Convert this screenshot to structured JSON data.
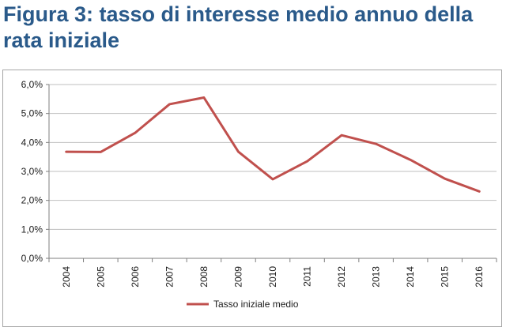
{
  "title": "Figura 3: tasso di interesse medio annuo della rata iniziale",
  "colors": {
    "title": "#2a5a8a",
    "series": "#c0504d",
    "grid": "#bfbfbf",
    "axis": "#7f7f7f",
    "frame": "#a6a6a6"
  },
  "chart_data": {
    "type": "line",
    "title": "",
    "xlabel": "",
    "ylabel": "",
    "categories": [
      "2004",
      "2005",
      "2006",
      "2007",
      "2008",
      "2009",
      "2010",
      "2011",
      "2012",
      "2013",
      "2014",
      "2015",
      "2016"
    ],
    "series": [
      {
        "name": "Tasso iniziale medio",
        "color": "#c0504d",
        "values": [
          3.68,
          3.67,
          4.33,
          5.32,
          5.55,
          3.68,
          2.73,
          3.35,
          4.25,
          3.95,
          3.4,
          2.75,
          2.31
        ]
      }
    ],
    "ylim": [
      0,
      6
    ],
    "yticks": [
      0,
      1,
      2,
      3,
      4,
      5,
      6
    ],
    "ytick_labels": [
      "0,0%",
      "1,0%",
      "2,0%",
      "3,0%",
      "4,0%",
      "5,0%",
      "6,0%"
    ],
    "grid": true,
    "legend_position": "bottom"
  }
}
